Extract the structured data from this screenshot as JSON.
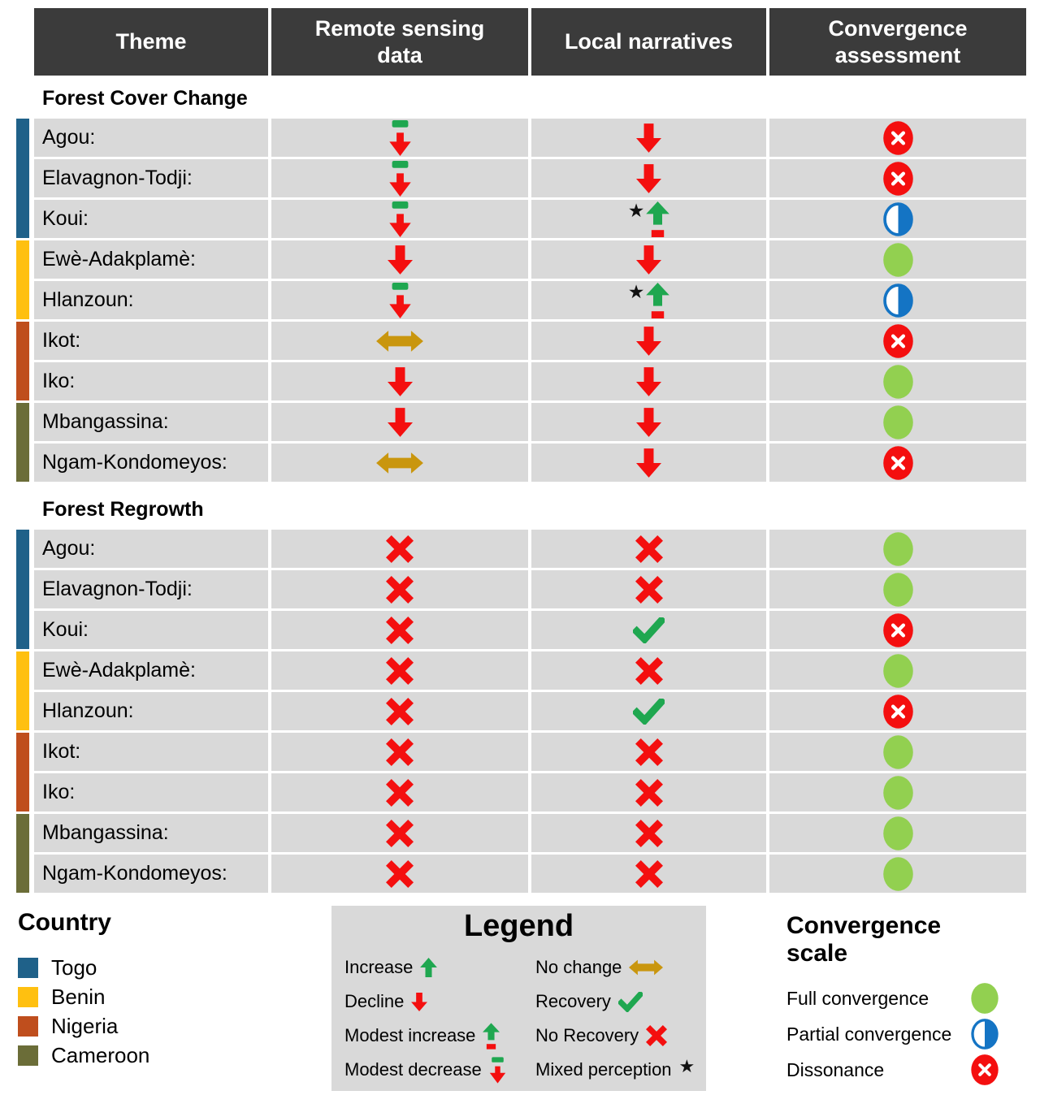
{
  "colors": {
    "header_bg": "#3B3B3B",
    "row_bg": "#D9D9D9",
    "red": "#F40F0F",
    "green": "#1FA750",
    "gold": "#C9960E",
    "full_green": "#92D050",
    "partial_blue": "#1474C4",
    "star_black": "#111111",
    "togo": "#1F6189",
    "benin": "#FFC010",
    "nigeria": "#BF4E1D",
    "cameroon": "#6B6D38"
  },
  "glyphs": {
    "star": "★"
  },
  "header": {
    "columns": [
      "Theme",
      "Remote sensing data",
      "Local narratives",
      "Convergence assessment"
    ]
  },
  "sections": [
    {
      "title": "Forest Cover Change",
      "rows": [
        {
          "label": "Agou:",
          "country_key": "togo",
          "remote": "modest-decrease",
          "narrative": "decline",
          "narrative_star": false,
          "convergence": "dissonance"
        },
        {
          "label": "Elavagnon-Todji:",
          "country_key": "togo",
          "remote": "modest-decrease",
          "narrative": "decline",
          "narrative_star": false,
          "convergence": "dissonance"
        },
        {
          "label": "Koui:",
          "country_key": "togo",
          "remote": "modest-decrease",
          "narrative": "modest-increase",
          "narrative_star": true,
          "convergence": "partial"
        },
        {
          "label": "Ewè-Adakplamè:",
          "country_key": "benin",
          "remote": "decline",
          "narrative": "decline",
          "narrative_star": false,
          "convergence": "full"
        },
        {
          "label": "Hlanzoun:",
          "country_key": "benin",
          "remote": "modest-decrease",
          "narrative": "modest-increase",
          "narrative_star": true,
          "convergence": "partial"
        },
        {
          "label": "Ikot:",
          "country_key": "nigeria",
          "remote": "no-change",
          "narrative": "decline",
          "narrative_star": false,
          "convergence": "dissonance"
        },
        {
          "label": "Iko:",
          "country_key": "nigeria",
          "remote": "decline",
          "narrative": "decline",
          "narrative_star": false,
          "convergence": "full"
        },
        {
          "label": "Mbangassina:",
          "country_key": "cameroon",
          "remote": "decline",
          "narrative": "decline",
          "narrative_star": false,
          "convergence": "full"
        },
        {
          "label": "Ngam-Kondomeyos:",
          "country_key": "cameroon",
          "remote": "no-change",
          "narrative": "decline",
          "narrative_star": false,
          "convergence": "dissonance"
        }
      ]
    },
    {
      "title": "Forest Regrowth",
      "rows": [
        {
          "label": "Agou:",
          "country_key": "togo",
          "remote": "no-recovery",
          "narrative": "no-recovery",
          "narrative_star": false,
          "convergence": "full"
        },
        {
          "label": "Elavagnon-Todji:",
          "country_key": "togo",
          "remote": "no-recovery",
          "narrative": "no-recovery",
          "narrative_star": false,
          "convergence": "full"
        },
        {
          "label": "Koui:",
          "country_key": "togo",
          "remote": "no-recovery",
          "narrative": "recovery",
          "narrative_star": false,
          "convergence": "dissonance"
        },
        {
          "label": "Ewè-Adakplamè:",
          "country_key": "benin",
          "remote": "no-recovery",
          "narrative": "no-recovery",
          "narrative_star": false,
          "convergence": "full"
        },
        {
          "label": "Hlanzoun:",
          "country_key": "benin",
          "remote": "no-recovery",
          "narrative": "recovery",
          "narrative_star": false,
          "convergence": "dissonance"
        },
        {
          "label": "Ikot:",
          "country_key": "nigeria",
          "remote": "no-recovery",
          "narrative": "no-recovery",
          "narrative_star": false,
          "convergence": "full"
        },
        {
          "label": "Iko:",
          "country_key": "nigeria",
          "remote": "no-recovery",
          "narrative": "no-recovery",
          "narrative_star": false,
          "convergence": "full"
        },
        {
          "label": "Mbangassina:",
          "country_key": "cameroon",
          "remote": "no-recovery",
          "narrative": "no-recovery",
          "narrative_star": false,
          "convergence": "full"
        },
        {
          "label": "Ngam-Kondomeyos:",
          "country_key": "cameroon",
          "remote": "no-recovery",
          "narrative": "no-recovery",
          "narrative_star": false,
          "convergence": "full"
        }
      ]
    }
  ],
  "legend": {
    "title": "Legend",
    "items_left": [
      {
        "label": "Increase",
        "icon": "increase"
      },
      {
        "label": "Decline",
        "icon": "decline"
      },
      {
        "label": "Modest increase",
        "icon": "modest-increase"
      },
      {
        "label": "Modest decrease",
        "icon": "modest-decrease"
      }
    ],
    "items_right": [
      {
        "label": "No change",
        "icon": "no-change"
      },
      {
        "label": "Recovery",
        "icon": "recovery"
      },
      {
        "label": "No Recovery",
        "icon": "no-recovery"
      },
      {
        "label": "Mixed perception",
        "icon": "mixed-perception"
      }
    ]
  },
  "country_legend": {
    "title": "Country",
    "items": [
      {
        "label": "Togo",
        "color_key": "togo"
      },
      {
        "label": "Benin",
        "color_key": "benin"
      },
      {
        "label": "Nigeria",
        "color_key": "nigeria"
      },
      {
        "label": "Cameroon",
        "color_key": "cameroon"
      }
    ]
  },
  "convergence_scale": {
    "title": "Convergence scale",
    "items": [
      {
        "label": "Full convergence",
        "icon": "full"
      },
      {
        "label": "Partial convergence",
        "icon": "partial"
      },
      {
        "label": "Dissonance",
        "icon": "dissonance"
      }
    ]
  },
  "chart_data": {
    "type": "table",
    "title": "Convergence between remote sensing data and local narratives",
    "columns": [
      "Theme",
      "Remote sensing data",
      "Local narratives",
      "Convergence assessment"
    ],
    "sections": [
      {
        "name": "Forest Cover Change",
        "rows": [
          [
            "Agou:",
            "modest decrease",
            "decline",
            "dissonance"
          ],
          [
            "Elavagnon-Todji:",
            "modest decrease",
            "decline",
            "dissonance"
          ],
          [
            "Koui:",
            "modest decrease",
            "modest increase ★ (mixed perception)",
            "partial convergence"
          ],
          [
            "Ewè-Adakplamè:",
            "decline",
            "decline",
            "full convergence"
          ],
          [
            "Hlanzoun:",
            "modest decrease",
            "modest increase ★ (mixed perception)",
            "partial convergence"
          ],
          [
            "Ikot:",
            "no change",
            "decline",
            "dissonance"
          ],
          [
            "Iko:",
            "decline",
            "decline",
            "full convergence"
          ],
          [
            "Mbangassina:",
            "decline",
            "decline",
            "full convergence"
          ],
          [
            "Ngam-Kondomeyos:",
            "no change",
            "decline",
            "dissonance"
          ]
        ]
      },
      {
        "name": "Forest Regrowth",
        "rows": [
          [
            "Agou:",
            "no recovery",
            "no recovery",
            "full convergence"
          ],
          [
            "Elavagnon-Todji:",
            "no recovery",
            "no recovery",
            "full convergence"
          ],
          [
            "Koui:",
            "no recovery",
            "recovery",
            "dissonance"
          ],
          [
            "Ewè-Adakplamè:",
            "no recovery",
            "no recovery",
            "full convergence"
          ],
          [
            "Hlanzoun:",
            "no recovery",
            "recovery",
            "dissonance"
          ],
          [
            "Ikot:",
            "no recovery",
            "no recovery",
            "full convergence"
          ],
          [
            "Iko:",
            "no recovery",
            "no recovery",
            "full convergence"
          ],
          [
            "Mbangassina:",
            "no recovery",
            "no recovery",
            "full convergence"
          ],
          [
            "Ngam-Kondomeyos:",
            "no recovery",
            "no recovery",
            "full convergence"
          ]
        ]
      }
    ],
    "country_groups": {
      "Togo": [
        "Agou",
        "Elavagnon-Todji",
        "Koui"
      ],
      "Benin": [
        "Ewè-Adakplamè",
        "Hlanzoun"
      ],
      "Nigeria": [
        "Ikot",
        "Iko"
      ],
      "Cameroon": [
        "Mbangassina",
        "Ngam-Kondomeyos"
      ]
    }
  }
}
